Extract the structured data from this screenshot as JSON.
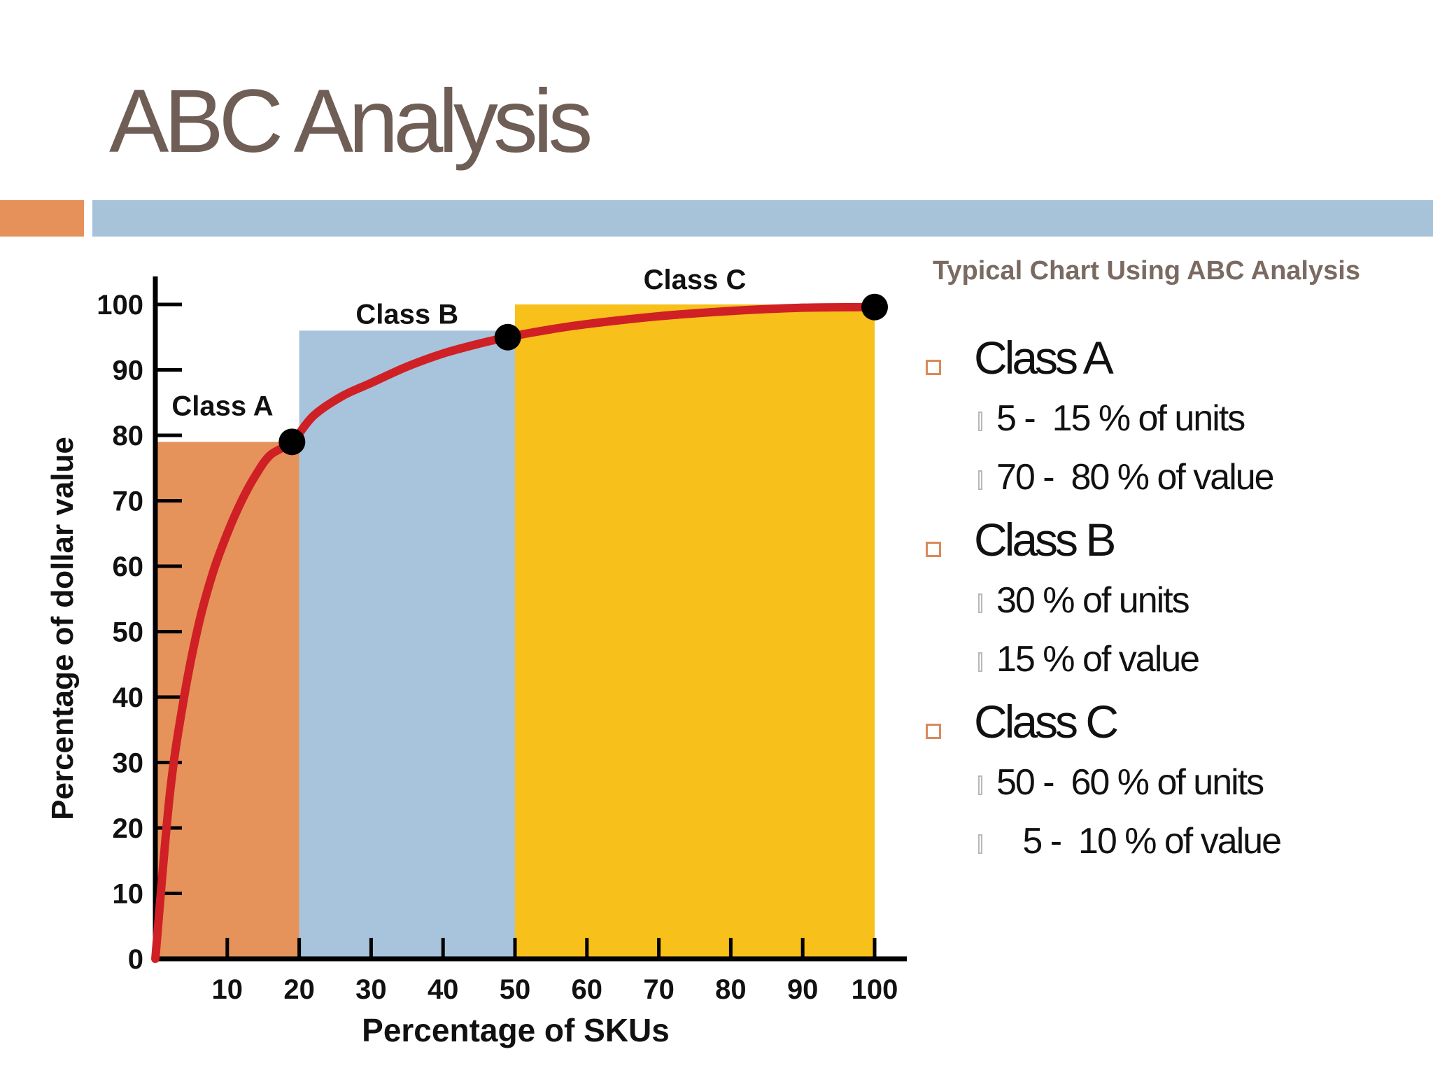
{
  "slide": {
    "title": "ABC Analysis",
    "caption": "Typical Chart Using ABC Analysis",
    "accent_colors": {
      "orange": "#e6915a",
      "blue": "#a6c3da",
      "title": "#6f5e55"
    }
  },
  "chart_data": {
    "type": "area",
    "xlabel": "Percentage of SKUs",
    "ylabel": "Percentage of dollar value",
    "xlim": [
      0,
      100
    ],
    "ylim": [
      0,
      100
    ],
    "x_ticks": [
      10,
      20,
      30,
      40,
      50,
      60,
      70,
      80,
      90,
      100
    ],
    "y_ticks": [
      0,
      10,
      20,
      30,
      40,
      50,
      60,
      70,
      80,
      90,
      100
    ],
    "regions": [
      {
        "label": "Class A",
        "x_start": 0,
        "x_end": 20,
        "height": 79,
        "color": "#e6925b"
      },
      {
        "label": "Class B",
        "x_start": 20,
        "x_end": 50,
        "height": 96,
        "color": "#a7c4dc"
      },
      {
        "label": "Class C",
        "x_start": 50,
        "x_end": 100,
        "height": 100,
        "color": "#f8c01a"
      }
    ],
    "curve": {
      "color": "#cf2025",
      "x": [
        0,
        2,
        4,
        6,
        8,
        10,
        12,
        14,
        16,
        19,
        22,
        26,
        30,
        35,
        40,
        45,
        49,
        55,
        60,
        70,
        80,
        90,
        100
      ],
      "y": [
        0,
        25,
        40,
        51,
        59,
        65,
        70,
        74,
        77,
        79,
        83,
        86,
        88,
        90.5,
        92.5,
        94,
        95,
        96.2,
        97,
        98.2,
        99,
        99.5,
        99.6
      ]
    },
    "markers": [
      {
        "x": 19,
        "y": 79
      },
      {
        "x": 49,
        "y": 95
      },
      {
        "x": 100,
        "y": 99.6
      }
    ]
  },
  "bullets": [
    {
      "label": "Class A",
      "items": [
        "5 -  15 % of units",
        "70 -  80 % of value"
      ]
    },
    {
      "label": "Class B",
      "items": [
        "30 % of units",
        "15 % of value"
      ]
    },
    {
      "label": "Class C",
      "items": [
        "50 -  60 % of units",
        "   5 -  10 % of value"
      ]
    }
  ]
}
